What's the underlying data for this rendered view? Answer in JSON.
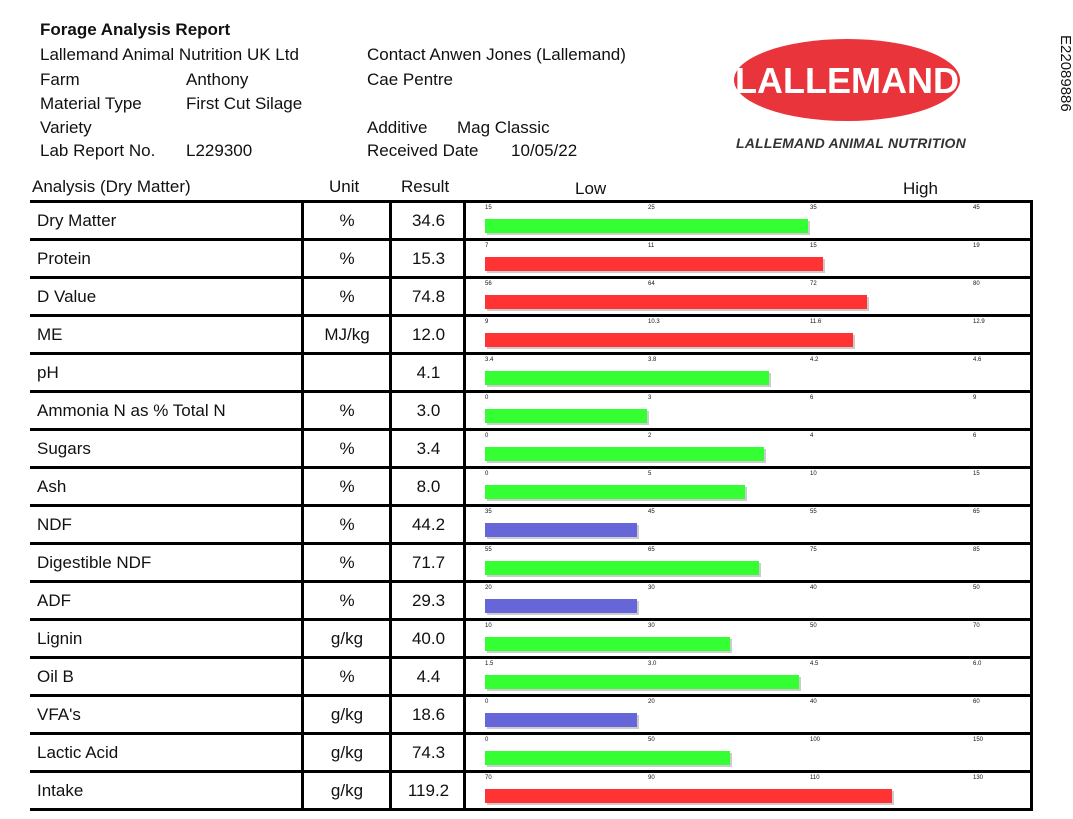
{
  "report": {
    "title": "Forage Analysis Report",
    "company": "Lallemand Animal Nutrition UK Ltd",
    "farm_label": "Farm",
    "farm_value": "Anthony",
    "material_label": "Material Type",
    "material_value": "First Cut Silage",
    "variety_label": "Variety",
    "variety_value": "",
    "lab_label": "Lab Report No.",
    "lab_value": "L229300",
    "contact": "Contact Anwen Jones (Lallemand)",
    "address": "Cae Pentre",
    "additive_label": "Additive",
    "additive_value": "Mag Classic",
    "received_label": "Received Date",
    "received_value": "10/05/22",
    "document_id": "E22089886"
  },
  "logo": {
    "text": "LALLEMAND",
    "subtitle": "LALLEMAND ANIMAL NUTRITION",
    "color": "#e8343a"
  },
  "columns": {
    "analysis": "Analysis (Dry Matter)",
    "unit": "Unit",
    "result": "Result",
    "low": "Low",
    "high": "High"
  },
  "colors": {
    "green": "#33ff33",
    "red": "#ff3333",
    "blue": "#6666d9"
  },
  "rows": [
    {
      "name": "Dry Matter",
      "unit": "%",
      "result": "34.6",
      "scale": [
        "15",
        "25",
        "35",
        "45"
      ],
      "level": 0.66,
      "color": "green"
    },
    {
      "name": "Protein",
      "unit": "%",
      "result": "15.3",
      "scale": [
        "7",
        "11",
        "15",
        "19"
      ],
      "level": 0.69,
      "color": "red"
    },
    {
      "name": "D Value",
      "unit": "%",
      "result": "74.8",
      "scale": [
        "56",
        "64",
        "72",
        "80"
      ],
      "level": 0.78,
      "color": "red"
    },
    {
      "name": "ME",
      "unit": "MJ/kg",
      "result": "12.0",
      "scale": [
        "9",
        "10.3",
        "11.6",
        "12.9"
      ],
      "level": 0.75,
      "color": "red"
    },
    {
      "name": "pH",
      "unit": "",
      "result": "4.1",
      "scale": [
        "3.4",
        "3.8",
        "4.2",
        "4.6"
      ],
      "level": 0.58,
      "color": "green"
    },
    {
      "name": "Ammonia N as % Total N",
      "unit": "%",
      "result": "3.0",
      "scale": [
        "0",
        "3",
        "6",
        "9"
      ],
      "level": 0.33,
      "color": "green"
    },
    {
      "name": "Sugars",
      "unit": "%",
      "result": "3.4",
      "scale": [
        "0",
        "2",
        "4",
        "6"
      ],
      "level": 0.57,
      "color": "green"
    },
    {
      "name": "Ash",
      "unit": "%",
      "result": "8.0",
      "scale": [
        "0",
        "5",
        "10",
        "15"
      ],
      "level": 0.53,
      "color": "green"
    },
    {
      "name": "NDF",
      "unit": "%",
      "result": "44.2",
      "scale": [
        "35",
        "45",
        "55",
        "65"
      ],
      "level": 0.31,
      "color": "blue"
    },
    {
      "name": "Digestible NDF",
      "unit": "%",
      "result": "71.7",
      "scale": [
        "55",
        "65",
        "75",
        "85"
      ],
      "level": 0.56,
      "color": "green"
    },
    {
      "name": "ADF",
      "unit": "%",
      "result": "29.3",
      "scale": [
        "20",
        "30",
        "40",
        "50"
      ],
      "level": 0.31,
      "color": "blue"
    },
    {
      "name": "Lignin",
      "unit": "g/kg",
      "result": "40.0",
      "scale": [
        "10",
        "30",
        "50",
        "70"
      ],
      "level": 0.5,
      "color": "green"
    },
    {
      "name": "Oil B",
      "unit": "%",
      "result": "4.4",
      "scale": [
        "1.5",
        "3.0",
        "4.5",
        "6.0"
      ],
      "level": 0.64,
      "color": "green"
    },
    {
      "name": "VFA's",
      "unit": "g/kg",
      "result": "18.6",
      "scale": [
        "0",
        "20",
        "40",
        "60"
      ],
      "level": 0.31,
      "color": "blue"
    },
    {
      "name": "Lactic Acid",
      "unit": "g/kg",
      "result": "74.3",
      "scale": [
        "0",
        "50",
        "100",
        "150"
      ],
      "level": 0.5,
      "color": "green"
    },
    {
      "name": "Intake",
      "unit": "g/kg",
      "result": "119.2",
      "scale": [
        "70",
        "90",
        "110",
        "130"
      ],
      "level": 0.83,
      "color": "red"
    }
  ]
}
